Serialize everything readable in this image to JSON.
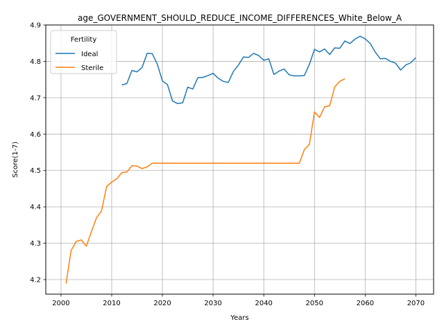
{
  "chart_data": {
    "type": "line",
    "title": "age_GOVERNMENT_SHOULD_REDUCE_INCOME_DIFFERENCES_White_Below_A",
    "xlabel": "Years",
    "ylabel": "Score(1-7)",
    "xlim": [
      1997,
      2073.5
    ],
    "ylim": [
      4.16,
      4.9
    ],
    "xticks": [
      2000,
      2010,
      2020,
      2030,
      2040,
      2050,
      2060,
      2070
    ],
    "yticks": [
      4.2,
      4.3,
      4.4,
      4.5,
      4.6,
      4.7,
      4.8,
      4.9
    ],
    "xtick_labels": [
      "2000",
      "2010",
      "2020",
      "2030",
      "2040",
      "2050",
      "2060",
      "2070"
    ],
    "ytick_labels": [
      "4.2",
      "4.3",
      "4.4",
      "4.5",
      "4.6",
      "4.7",
      "4.8",
      "4.9"
    ],
    "grid": true,
    "legend": {
      "title": "Fertility",
      "placement": "upper-left"
    },
    "series": [
      {
        "name": "Ideal",
        "color": "#1f77b4",
        "x": [
          2012,
          2013,
          2014,
          2015,
          2016,
          2017,
          2018,
          2019,
          2020,
          2021,
          2022,
          2023,
          2024,
          2025,
          2026,
          2027,
          2028,
          2029,
          2030,
          2031,
          2032,
          2033,
          2034,
          2035,
          2036,
          2037,
          2038,
          2039,
          2040,
          2041,
          2042,
          2043,
          2044,
          2045,
          2046,
          2047,
          2048,
          2049,
          2050,
          2051,
          2052,
          2053,
          2054,
          2055,
          2056,
          2057,
          2058,
          2059,
          2060,
          2061,
          2062,
          2063,
          2064,
          2065,
          2066,
          2067,
          2068,
          2069,
          2070
        ],
        "y": [
          4.735,
          4.739,
          4.775,
          4.771,
          4.783,
          4.822,
          4.821,
          4.792,
          4.746,
          4.736,
          4.691,
          4.684,
          4.686,
          4.729,
          4.724,
          4.755,
          4.756,
          4.761,
          4.767,
          4.754,
          4.745,
          4.742,
          4.772,
          4.79,
          4.812,
          4.811,
          4.822,
          4.816,
          4.803,
          4.807,
          4.764,
          4.773,
          4.779,
          4.763,
          4.76,
          4.76,
          4.761,
          4.792,
          4.833,
          4.826,
          4.834,
          4.819,
          4.837,
          4.836,
          4.856,
          4.849,
          4.861,
          4.869,
          4.862,
          4.849,
          4.825,
          4.807,
          4.808,
          4.8,
          4.795,
          4.776,
          4.79,
          4.796,
          4.81
        ]
      },
      {
        "name": "Sterile",
        "color": "#ff7f0e",
        "x": [
          2001,
          2002,
          2003,
          2004,
          2005,
          2006,
          2007,
          2008,
          2009,
          2010,
          2011,
          2012,
          2013,
          2014,
          2015,
          2016,
          2017,
          2018,
          2019,
          2020,
          2021,
          2022,
          2023,
          2024,
          2025,
          2026,
          2027,
          2028,
          2029,
          2030,
          2031,
          2032,
          2033,
          2034,
          2035,
          2036,
          2037,
          2038,
          2039,
          2040,
          2041,
          2042,
          2043,
          2044,
          2045,
          2046,
          2047,
          2048,
          2049,
          2050,
          2051,
          2052,
          2053,
          2054,
          2055,
          2056
        ],
        "y": [
          4.189,
          4.28,
          4.305,
          4.309,
          4.292,
          4.332,
          4.37,
          4.389,
          4.456,
          4.468,
          4.477,
          4.494,
          4.496,
          4.513,
          4.512,
          4.505,
          4.51,
          4.52,
          4.52,
          4.52,
          4.52,
          4.52,
          4.52,
          4.52,
          4.52,
          4.52,
          4.52,
          4.52,
          4.52,
          4.52,
          4.52,
          4.52,
          4.52,
          4.52,
          4.52,
          4.52,
          4.52,
          4.52,
          4.52,
          4.52,
          4.52,
          4.52,
          4.52,
          4.52,
          4.52,
          4.52,
          4.52,
          4.557,
          4.572,
          4.661,
          4.646,
          4.675,
          4.678,
          4.73,
          4.745,
          4.752
        ]
      }
    ]
  }
}
